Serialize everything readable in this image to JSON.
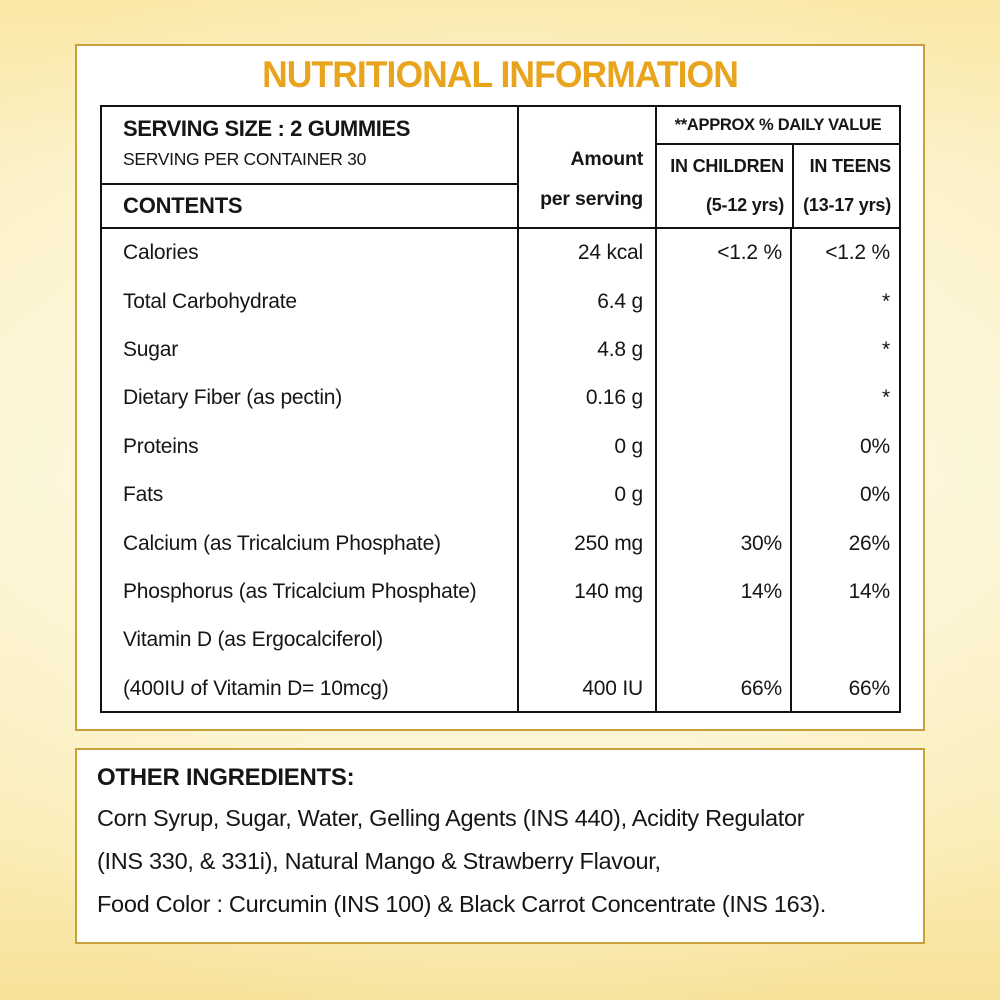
{
  "page": {
    "title": "NUTRITIONAL INFORMATION"
  },
  "colors": {
    "title_accent": "#E9A41E",
    "panel_border": "#C9A13B",
    "background_yellow": "#FBEFC0",
    "table_line": "#111111",
    "text": "#161616"
  },
  "nutrition_table": {
    "serving_size": "SERVING SIZE : 2 GUMMIES",
    "serving_per_container": "SERVING PER CONTAINER 30",
    "contents_header": "CONTENTS",
    "amount_header_line1": "Amount",
    "amount_header_line2": "per serving",
    "daily_value_header": "**APPROX % DAILY VALUE",
    "children_header_line1": "IN CHILDREN",
    "children_header_line2": "(5-12 yrs)",
    "teens_header_line1": "IN TEENS",
    "teens_header_line2": "(13-17 yrs)",
    "rows": [
      {
        "label": "Calories",
        "amount": "24 kcal",
        "children": "<1.2 %",
        "teens": "<1.2 %"
      },
      {
        "label": "Total Carbohydrate",
        "amount": "6.4 g",
        "children": "",
        "teens": "*"
      },
      {
        "label": "Sugar",
        "amount": "4.8 g",
        "children": "",
        "teens": "*"
      },
      {
        "label": "Dietary Fiber (as pectin)",
        "amount": "0.16 g",
        "children": "",
        "teens": "*"
      },
      {
        "label": "Proteins",
        "amount": "0 g",
        "children": "",
        "teens": "0%"
      },
      {
        "label": "Fats",
        "amount": "0 g",
        "children": "",
        "teens": "0%"
      },
      {
        "label": "Calcium (as Tricalcium Phosphate)",
        "amount": "250 mg",
        "children": "30%",
        "teens": "26%"
      },
      {
        "label": "Phosphorus (as Tricalcium Phosphate)",
        "amount": "140 mg",
        "children": "14%",
        "teens": "14%"
      },
      {
        "label": "Vitamin D (as Ergocalciferol)",
        "amount": "",
        "children": "",
        "teens": ""
      },
      {
        "label": "(400IU of Vitamin D= 10mcg)",
        "amount": "400 IU",
        "children": "66%",
        "teens": "66%"
      }
    ]
  },
  "other_ingredients": {
    "heading": "OTHER INGREDIENTS:",
    "lines": [
      "Corn Syrup, Sugar, Water, Gelling Agents (INS 440), Acidity Regulator",
      "(INS 330, & 331i), Natural Mango & Strawberry Flavour,",
      "Food Color : Curcumin (INS 100) & Black Carrot Concentrate (INS 163)."
    ]
  }
}
